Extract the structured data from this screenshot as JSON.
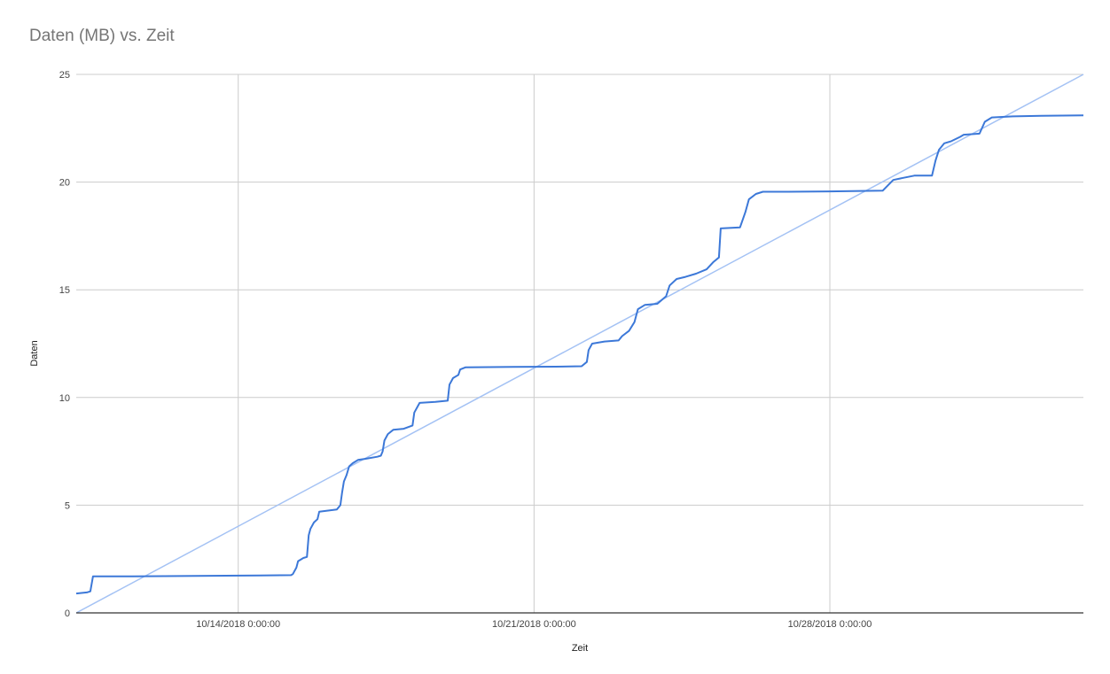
{
  "chart_data": {
    "type": "line",
    "title": "Daten (MB) vs. Zeit",
    "xlabel": "Zeit",
    "ylabel": "Daten",
    "ylim": [
      0,
      25
    ],
    "yticks": [
      0,
      5,
      10,
      15,
      20,
      25
    ],
    "xlim": [
      "2018-10-10 04:00",
      "2018-11-03 00:00"
    ],
    "xticks": [
      {
        "date": "2018-10-14 00:00",
        "label": "10/14/2018 0:00:00"
      },
      {
        "date": "2018-10-21 00:00",
        "label": "10/21/2018 0:00:00"
      },
      {
        "date": "2018-10-28 00:00",
        "label": "10/28/2018 0:00:00"
      }
    ],
    "grid": true,
    "legend": "none",
    "colors": {
      "data": "#3c78d8",
      "trend": "#a4c2f4",
      "grid": "#cccccc",
      "axis": "#333333"
    },
    "series": [
      {
        "kind": "data",
        "points": [
          [
            "2018-10-10 04:00",
            0.9
          ],
          [
            "2018-10-10 10:00",
            0.95
          ],
          [
            "2018-10-10 12:00",
            1.0
          ],
          [
            "2018-10-10 13:30",
            1.7
          ],
          [
            "2018-10-11 12:00",
            1.7
          ],
          [
            "2018-10-13 00:00",
            1.72
          ],
          [
            "2018-10-14 12:00",
            1.74
          ],
          [
            "2018-10-15 06:00",
            1.75
          ],
          [
            "2018-10-15 07:00",
            1.8
          ],
          [
            "2018-10-15 09:00",
            2.1
          ],
          [
            "2018-10-15 10:00",
            2.4
          ],
          [
            "2018-10-15 13:00",
            2.55
          ],
          [
            "2018-10-15 15:00",
            2.6
          ],
          [
            "2018-10-15 16:00",
            3.6
          ],
          [
            "2018-10-15 17:00",
            3.9
          ],
          [
            "2018-10-15 19:00",
            4.2
          ],
          [
            "2018-10-15 21:00",
            4.35
          ],
          [
            "2018-10-15 22:00",
            4.7
          ],
          [
            "2018-10-16 08:00",
            4.8
          ],
          [
            "2018-10-16 10:00",
            5.0
          ],
          [
            "2018-10-16 11:00",
            5.6
          ],
          [
            "2018-10-16 12:00",
            6.1
          ],
          [
            "2018-10-16 13:30",
            6.4
          ],
          [
            "2018-10-16 15:00",
            6.8
          ],
          [
            "2018-10-16 17:00",
            6.95
          ],
          [
            "2018-10-16 20:00",
            7.1
          ],
          [
            "2018-10-17 00:00",
            7.15
          ],
          [
            "2018-10-17 07:00",
            7.25
          ],
          [
            "2018-10-17 09:00",
            7.3
          ],
          [
            "2018-10-17 10:00",
            7.5
          ],
          [
            "2018-10-17 11:00",
            8.0
          ],
          [
            "2018-10-17 13:00",
            8.3
          ],
          [
            "2018-10-17 16:00",
            8.5
          ],
          [
            "2018-10-17 22:00",
            8.55
          ],
          [
            "2018-10-18 03:00",
            8.7
          ],
          [
            "2018-10-18 04:00",
            9.3
          ],
          [
            "2018-10-18 06:00",
            9.6
          ],
          [
            "2018-10-18 07:00",
            9.75
          ],
          [
            "2018-10-18 16:00",
            9.8
          ],
          [
            "2018-10-18 23:00",
            9.85
          ],
          [
            "2018-10-19 00:00",
            10.6
          ],
          [
            "2018-10-19 02:00",
            10.9
          ],
          [
            "2018-10-19 05:00",
            11.05
          ],
          [
            "2018-10-19 06:00",
            11.3
          ],
          [
            "2018-10-19 09:00",
            11.4
          ],
          [
            "2018-10-20 12:00",
            11.42
          ],
          [
            "2018-10-21 12:00",
            11.43
          ],
          [
            "2018-10-22 03:00",
            11.45
          ],
          [
            "2018-10-22 06:00",
            11.65
          ],
          [
            "2018-10-22 07:00",
            12.2
          ],
          [
            "2018-10-22 09:00",
            12.5
          ],
          [
            "2018-10-22 16:00",
            12.6
          ],
          [
            "2018-10-23 00:00",
            12.65
          ],
          [
            "2018-10-23 02:00",
            12.85
          ],
          [
            "2018-10-23 06:00",
            13.1
          ],
          [
            "2018-10-23 09:00",
            13.5
          ],
          [
            "2018-10-23 11:00",
            14.1
          ],
          [
            "2018-10-23 15:00",
            14.3
          ],
          [
            "2018-10-23 22:00",
            14.35
          ],
          [
            "2018-10-24 03:00",
            14.7
          ],
          [
            "2018-10-24 05:00",
            15.2
          ],
          [
            "2018-10-24 09:00",
            15.5
          ],
          [
            "2018-10-24 14:00",
            15.6
          ],
          [
            "2018-10-24 20:00",
            15.75
          ],
          [
            "2018-10-25 02:00",
            15.95
          ],
          [
            "2018-10-25 06:00",
            16.3
          ],
          [
            "2018-10-25 09:00",
            16.5
          ],
          [
            "2018-10-25 10:00",
            17.85
          ],
          [
            "2018-10-25 21:00",
            17.9
          ],
          [
            "2018-10-26 00:00",
            18.6
          ],
          [
            "2018-10-26 02:00",
            19.2
          ],
          [
            "2018-10-26 06:00",
            19.45
          ],
          [
            "2018-10-26 10:00",
            19.55
          ],
          [
            "2018-10-27 00:00",
            19.55
          ],
          [
            "2018-10-28 00:00",
            19.57
          ],
          [
            "2018-10-29 06:00",
            19.6
          ],
          [
            "2018-10-29 09:00",
            19.85
          ],
          [
            "2018-10-29 12:00",
            20.1
          ],
          [
            "2018-10-29 18:00",
            20.2
          ],
          [
            "2018-10-30 00:00",
            20.3
          ],
          [
            "2018-10-30 10:00",
            20.3
          ],
          [
            "2018-10-30 12:00",
            21.0
          ],
          [
            "2018-10-30 14:00",
            21.5
          ],
          [
            "2018-10-30 17:00",
            21.8
          ],
          [
            "2018-10-30 21:00",
            21.9
          ],
          [
            "2018-10-31 02:00",
            22.1
          ],
          [
            "2018-10-31 04:00",
            22.2
          ],
          [
            "2018-10-31 13:00",
            22.25
          ],
          [
            "2018-10-31 16:00",
            22.8
          ],
          [
            "2018-10-31 20:00",
            23.0
          ],
          [
            "2018-11-01 08:00",
            23.05
          ],
          [
            "2018-11-02 00:00",
            23.08
          ],
          [
            "2018-11-03 00:00",
            23.1
          ]
        ]
      },
      {
        "kind": "trendline",
        "points": [
          [
            "2018-10-10 04:00",
            0.0
          ],
          [
            "2018-11-03 00:00",
            25.0
          ]
        ]
      }
    ]
  }
}
